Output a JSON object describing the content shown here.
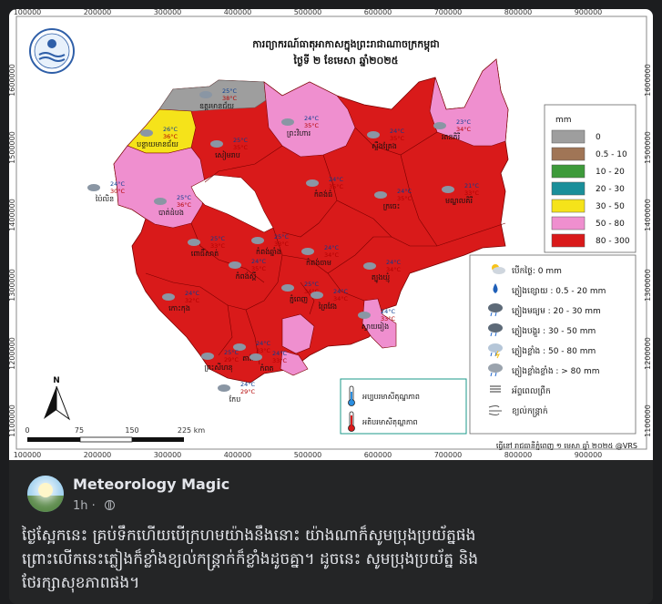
{
  "post": {
    "page_name": "Meteorology Magic",
    "time": "1h ·",
    "caption_lines": [
      "ថ្ងៃស្អែកនេះ គ្រប់ទឹកហើយបើក្រហមយ៉ាងនឹងនោះ យ៉ាងណាក៏សូមប្រុងប្រយ័ត្នផង",
      "ព្រោះលើកនេះភ្លៀងក៏ខ្លាំងខ្យល់កន្ត្រាក់ក៏ខ្លាំងដូចគ្នា។ ដូចនេះ សូមប្រុងប្រយ័ត្ន និង",
      "ថែរក្សាសុខភាពផង។"
    ]
  },
  "map": {
    "title_line1": "ការព្យាករណ៍ធាតុអាកាសក្នុងព្រះរាជាណាចក្រកម្ពុជា",
    "title_line2": "ថ្ងៃទី ២ ខែមេសា ឆ្នាំ២០២៥",
    "x_ticks": [
      "100000",
      "200000",
      "300000",
      "400000",
      "500000",
      "600000",
      "700000",
      "800000",
      "900000"
    ],
    "y_ticks": [
      "1600000",
      "1500000",
      "1400000",
      "1300000",
      "1200000",
      "1100000"
    ],
    "scale_labels": [
      "0",
      "75",
      "150",
      "225 km"
    ],
    "north_label": "N",
    "footer": "ធ្វើនៅ រាជធានីភ្នំពេញ ១ មេសា ឆ្នាំ ២០២៥ @VRS",
    "temp_legend": {
      "min_label": "អប្បបរមាសីតុណ្ហភាព",
      "max_label": "អតិបរមាសីតុណ្ហភាព"
    },
    "rain_legend": {
      "unit": "mm",
      "classes": [
        {
          "label": "0",
          "color": "#9e9e9e"
        },
        {
          "label": "0.5 - 10",
          "color": "#a07556"
        },
        {
          "label": "10 - 20",
          "color": "#3d9a3a"
        },
        {
          "label": "20 - 30",
          "color": "#1a8f9a"
        },
        {
          "label": "30 - 50",
          "color": "#f5e31a"
        },
        {
          "label": "50 - 80",
          "color": "#ef8fcf"
        },
        {
          "label": "80 - 300",
          "color": "#d91a1a"
        }
      ]
    },
    "weather_legend": [
      {
        "icon": "sunny-icon",
        "label": "បើកថ្ងៃ: 0 mm"
      },
      {
        "icon": "drop-icon",
        "label": "ភ្លៀងខ្សោយ : 0.5 - 20 mm"
      },
      {
        "icon": "light-rain-cloud-icon",
        "label": "ភ្លៀងមធ្យម : 20 - 30 mm"
      },
      {
        "icon": "rain-cloud-icon",
        "label": "ភ្លៀងបង្គួរ : 30 - 50 mm"
      },
      {
        "icon": "thunder-cloud-icon",
        "label": "ភ្លៀងខ្លាំង : 50 - 80 mm"
      },
      {
        "icon": "heavy-rain-cloud-icon",
        "label": "ភ្លៀងខ្លាំងខ្លាំង : > 80 mm"
      },
      {
        "icon": "haze-icon",
        "label": "អ័ព្ទពេលព្រឹក"
      },
      {
        "icon": "wind-icon",
        "label": "ខ្យល់កន្ត្រាក់"
      }
    ],
    "provinces": [
      {
        "name": "បន្ទាយមានជ័យ",
        "min": "26°C",
        "max": "36°C"
      },
      {
        "name": "ឧត្តរមានជ័យ",
        "min": "25°C",
        "max": "38°C"
      },
      {
        "name": "ព្រះវិហារ",
        "min": "24°C",
        "max": "35°C"
      },
      {
        "name": "សៀមរាប",
        "min": "25°C",
        "max": "35°C"
      },
      {
        "name": "ស្ទឹងត្រែង",
        "min": "24°C",
        "max": "35°C"
      },
      {
        "name": "រតនគិរី",
        "min": "23°C",
        "max": "34°C"
      },
      {
        "name": "បាត់ដំបង",
        "min": "25°C",
        "max": "36°C"
      },
      {
        "name": "ប៉ៃលិន",
        "min": "24°C",
        "max": "30°C"
      },
      {
        "name": "កំពង់ធំ",
        "min": "24°C",
        "max": "35°C"
      },
      {
        "name": "ក្រចេះ",
        "min": "24°C",
        "max": "35°C"
      },
      {
        "name": "មណ្ឌលគិរី",
        "min": "21°C",
        "max": "33°C"
      },
      {
        "name": "ពោធិ៍សាត់",
        "min": "25°C",
        "max": "33°C"
      },
      {
        "name": "កំពង់ឆ្នាំង",
        "min": "25°C",
        "max": "33°C"
      },
      {
        "name": "កំពង់ចាម",
        "min": "24°C",
        "max": "34°C"
      },
      {
        "name": "ត្បូងឃ្មុំ",
        "min": "24°C",
        "max": "34°C"
      },
      {
        "name": "កោះកុង",
        "min": "24°C",
        "max": "32°C"
      },
      {
        "name": "កំពង់ស្ពឺ",
        "min": "24°C",
        "max": "35°C"
      },
      {
        "name": "ភ្នំពេញ",
        "min": "25°C",
        "max": "34°C"
      },
      {
        "name": "ព្រៃវែង",
        "min": "24°C",
        "max": "34°C"
      },
      {
        "name": "ស្វាយរៀង",
        "min": "24°C",
        "max": "33°C"
      },
      {
        "name": "តាកែវ",
        "min": "24°C",
        "max": "33°C"
      },
      {
        "name": "កំពត",
        "min": "24°C",
        "max": "33°C"
      },
      {
        "name": "ព្រះសីហនុ",
        "min": "25°C",
        "max": "29°C"
      },
      {
        "name": "កែប",
        "min": "24°C",
        "max": "29°C"
      }
    ]
  }
}
